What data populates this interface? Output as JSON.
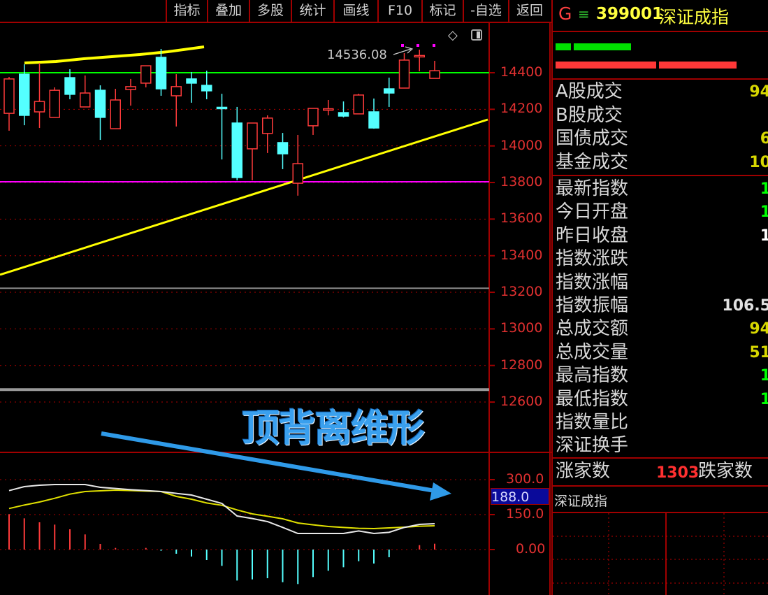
{
  "toolbar": {
    "items": [
      "指标",
      "叠加",
      "多股",
      "统计",
      "画线",
      "F10",
      "标记",
      "-自选",
      "返回"
    ]
  },
  "header": {
    "g_label": "G",
    "menu_icon": "≡",
    "code": "399001",
    "name": "深证成指"
  },
  "colors": {
    "up": "#ff3b3b",
    "down": "#54ffff",
    "border": "#a00000",
    "axis_text": "#e03030",
    "yellow": "#ffff00",
    "green": "#00ff00",
    "magenta": "#ff00ff"
  },
  "stats_group1": [
    {
      "label": "A股成交",
      "value": "94",
      "color": "#d8d800"
    },
    {
      "label": "B股成交",
      "value": "",
      "color": "#d8d800"
    },
    {
      "label": "国债成交",
      "value": "6",
      "color": "#d8d800"
    },
    {
      "label": "基金成交",
      "value": "10",
      "color": "#d8d800"
    }
  ],
  "stats_group2": [
    {
      "label": "最新指数",
      "value": "1",
      "color": "#00ff00"
    },
    {
      "label": "今日开盘",
      "value": "1",
      "color": "#00ff00"
    },
    {
      "label": "昨日收盘",
      "value": "1",
      "color": "#ffffff"
    },
    {
      "label": "指数涨跌",
      "value": "",
      "color": "#00ff00"
    },
    {
      "label": "指数涨幅",
      "value": "",
      "color": "#00ff00"
    },
    {
      "label": "指数振幅",
      "value": "106.5",
      "color": "#e0e0e0"
    },
    {
      "label": "总成交额",
      "value": "94",
      "color": "#d8d800"
    },
    {
      "label": "总成交量",
      "value": "51",
      "color": "#d8d800"
    },
    {
      "label": "最高指数",
      "value": "1",
      "color": "#00ff00"
    },
    {
      "label": "最低指数",
      "value": "1",
      "color": "#00ff00"
    },
    {
      "label": "指数量比",
      "value": "",
      "color": "#e0e0e0"
    },
    {
      "label": "深证换手",
      "value": "",
      "color": "#e0e0e0"
    }
  ],
  "breadth": {
    "up_label": "涨家数",
    "up_count": "1303",
    "down_label": "跌家数"
  },
  "mini_chart_title": "深证成指",
  "annotation": {
    "text": "顶背离维形"
  },
  "chart_data": [
    {
      "type": "candlestick",
      "y_ticks": [
        "14400",
        "14200",
        "14000",
        "13800",
        "13600",
        "13400",
        "13200",
        "13000",
        "12800",
        "12600"
      ],
      "ylim": [
        12600,
        14400
      ],
      "high_label": "14536.08",
      "candles": [
        [
          14178,
          14377,
          14083,
          14366
        ],
        [
          14392,
          14446,
          14113,
          14167
        ],
        [
          14186,
          14453,
          14098,
          14243
        ],
        [
          14156,
          14320,
          14156,
          14304
        ],
        [
          14373,
          14419,
          14255,
          14282
        ],
        [
          14213,
          14385,
          14213,
          14289
        ],
        [
          14304,
          14331,
          14033,
          14156
        ],
        [
          14094,
          14312,
          14094,
          14251
        ],
        [
          14308,
          14366,
          14220,
          14324
        ],
        [
          14343,
          14438,
          14320,
          14438
        ],
        [
          14484,
          14530,
          14274,
          14312
        ],
        [
          14274,
          14392,
          14106,
          14324
        ],
        [
          14366,
          14404,
          14236,
          14343
        ],
        [
          14331,
          14411,
          14255,
          14301
        ],
        [
          14211,
          14285,
          13926,
          14209
        ],
        [
          14125,
          14213,
          13812,
          13827
        ],
        [
          13984,
          14125,
          13812,
          14125
        ],
        [
          14068,
          14167,
          13961,
          14152
        ],
        [
          14018,
          14071,
          13873,
          13957
        ],
        [
          13796,
          14060,
          13728,
          13903
        ],
        [
          14110,
          14205,
          14060,
          14205
        ],
        [
          14199,
          14251,
          14167,
          14203
        ],
        [
          14182,
          14243,
          14156,
          14163
        ],
        [
          14175,
          14285,
          14175,
          14278
        ],
        [
          14186,
          14259,
          14094,
          14098
        ],
        [
          14312,
          14373,
          14213,
          14289
        ],
        [
          14316,
          14507,
          14316,
          14469
        ],
        [
          14490,
          14526,
          14408,
          14494
        ],
        [
          14369,
          14465,
          14369,
          14411
        ]
      ],
      "candle_fields": [
        "open",
        "high",
        "low",
        "close"
      ],
      "horizontal_lines": [
        {
          "price": 14400,
          "color": "#00ff00"
        },
        {
          "price": 13804,
          "color": "#ff00ff"
        },
        {
          "price": 13222,
          "color": "#888888"
        },
        {
          "price": 12668,
          "color": "#999999"
        }
      ]
    },
    {
      "type": "macd",
      "y_ticks": [
        "300.0",
        "150.0",
        "0.00"
      ],
      "current_value": "188.0",
      "dif": [
        253,
        270,
        276,
        279,
        279,
        279,
        267,
        262,
        257,
        253,
        249,
        241,
        234,
        216,
        198,
        144,
        133,
        120,
        95,
        69,
        69,
        69,
        69,
        80,
        69,
        74,
        95,
        108,
        111
      ],
      "dea": [
        176,
        191,
        204,
        220,
        238,
        249,
        252,
        255,
        253,
        251,
        249,
        228,
        216,
        200,
        190,
        170,
        153,
        143,
        132,
        114,
        106,
        99,
        95,
        91,
        90,
        93,
        96,
        100,
        102
      ],
      "histogram": [
        152,
        134,
        117,
        107,
        87,
        65,
        24,
        7,
        0,
        7,
        -5,
        -18,
        -30,
        -45,
        -70,
        -133,
        -128,
        -123,
        -140,
        -148,
        -118,
        -91,
        -76,
        -50,
        -60,
        -33,
        0,
        19,
        25
      ]
    }
  ]
}
